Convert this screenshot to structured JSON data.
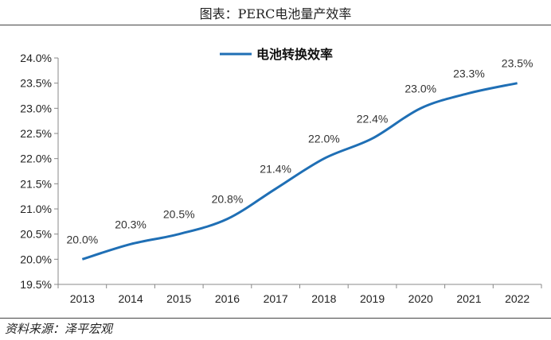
{
  "header": {
    "figure_title": "图表：PERC电池量产效率"
  },
  "footer": {
    "source": "资料来源：泽平宏观"
  },
  "chart_data": {
    "type": "line",
    "title": "",
    "x": [
      "2013",
      "2014",
      "2015",
      "2016",
      "2017",
      "2018",
      "2019",
      "2020",
      "2021",
      "2022"
    ],
    "series": [
      {
        "name": "电池转换效率",
        "values": [
          20.0,
          20.3,
          20.5,
          20.8,
          21.4,
          22.0,
          22.4,
          23.0,
          23.3,
          23.5
        ],
        "labels": [
          "20.0%",
          "20.3%",
          "20.5%",
          "20.8%",
          "21.4%",
          "22.0%",
          "22.4%",
          "23.0%",
          "23.3%",
          "23.5%"
        ],
        "color": "#1f6fb5"
      }
    ],
    "ylim": [
      19.5,
      24.0
    ],
    "yticks": [
      "19.5%",
      "20.0%",
      "20.5%",
      "21.0%",
      "21.5%",
      "22.0%",
      "22.5%",
      "23.0%",
      "23.5%",
      "24.0%"
    ],
    "ytick_values": [
      19.5,
      20.0,
      20.5,
      21.0,
      21.5,
      22.0,
      22.5,
      23.0,
      23.5,
      24.0
    ],
    "grid": false,
    "legend_position": "top-center",
    "xlabel": "",
    "ylabel": ""
  }
}
